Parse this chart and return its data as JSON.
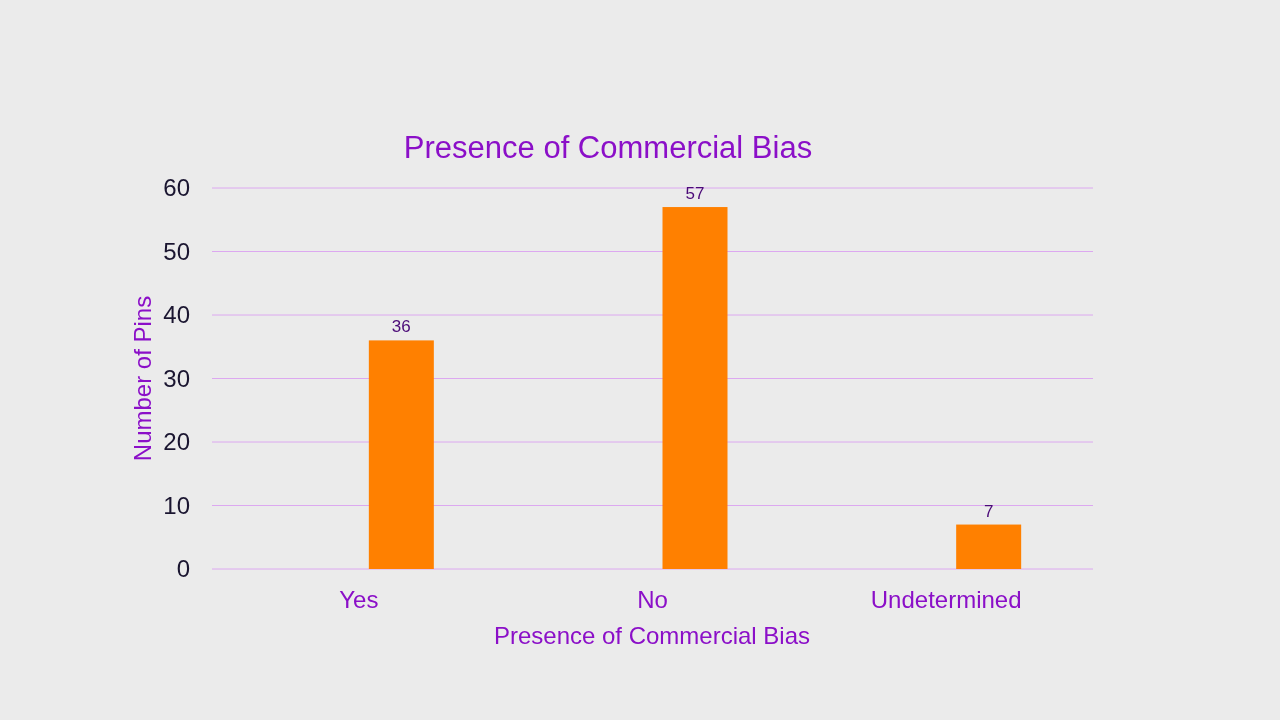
{
  "chart_data": {
    "type": "bar",
    "title": "Presence of Commercial Bias",
    "xlabel": "Presence of Commercial Bias",
    "ylabel": "Number of Pins",
    "categories": [
      "Yes",
      "No",
      "Undetermined"
    ],
    "values": [
      36,
      57,
      7
    ],
    "color": "#ff8000",
    "ylim": [
      0,
      60
    ],
    "yticks": [
      0,
      10,
      20,
      30,
      40,
      50,
      60
    ],
    "grid": "y",
    "data_labels": true
  }
}
